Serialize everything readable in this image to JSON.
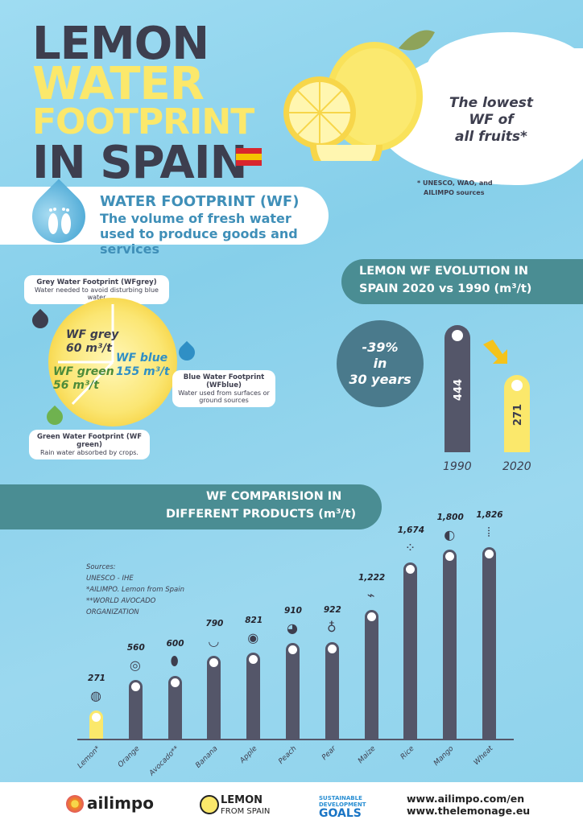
{
  "title": {
    "line1": "LEMON",
    "line2": "WATER",
    "line3": "FOOTPRINT",
    "line4": "IN SPAIN"
  },
  "colors": {
    "background": "#8fd3ec",
    "dark": "#3d3e4e",
    "yellow": "#fbe86b",
    "teal": "#4a8d93",
    "blue_text": "#3f8fb8",
    "bar": "#545669"
  },
  "callout": {
    "text_line1": "The lowest",
    "text_line2": "WF of",
    "text_line3": "all fruits*",
    "sources_line1": "* UNESCO, WAO, and",
    "sources_line2": "AILIMPO sources"
  },
  "definition": {
    "title": "WATER FOOTPRINT (WF)",
    "subtitle": "The volume of fresh water used to produce goods and services"
  },
  "lemon_breakdown": {
    "grey_label": "WF grey",
    "grey_value": "60 m³/t",
    "blue_label": "WF blue",
    "blue_value": "155 m³/t",
    "green_label": "WF green",
    "green_value": "56 m³/t",
    "grey_box_title": "Grey Water Footprint (WFgrey)",
    "grey_box_desc": "Water needed to avoid disturbing blue water",
    "blue_box_title": "Blue Water Footprint (WFblue)",
    "blue_box_desc": "Water used from surfaces or ground sources",
    "green_box_title": "Green Water Footprint (WF green)",
    "green_box_desc": "Rain water absorbed by crops."
  },
  "evolution": {
    "title_line1": "LEMON WF EVOLUTION IN",
    "title_line2": "SPAIN 2020 vs 1990 (m³/t)",
    "change_line1": "-39%",
    "change_line2": "in",
    "change_line3": "30 years",
    "chart_data": {
      "type": "bar",
      "categories": [
        "1990",
        "2020"
      ],
      "values": [
        444,
        271
      ],
      "title": "LEMON WF EVOLUTION IN SPAIN 2020 vs 1990 (m³/t)",
      "ylim": [
        0,
        500
      ]
    }
  },
  "comparison": {
    "title_line1": "WF COMPARISION IN",
    "title_line2": "DIFFERENT PRODUCTS (m³/t)",
    "sources": [
      "Sources:",
      "UNESCO - IHE",
      "*AILIMPO. Lemon from Spain",
      "**WORLD AVOCADO",
      "ORGANIZATION"
    ],
    "chart_data": {
      "type": "bar",
      "title": "WF COMPARISION IN DIFFERENT PRODUCTS (m³/t)",
      "categories": [
        "Lemon*",
        "Orange",
        "Avocado**",
        "Banana",
        "Apple",
        "Peach",
        "Pear",
        "Maize",
        "Rice",
        "Mango",
        "Wheat"
      ],
      "values": [
        271,
        560,
        600,
        790,
        821,
        910,
        922,
        1222,
        1674,
        1800,
        1826
      ],
      "value_labels": [
        "271",
        "560",
        "600",
        "790",
        "821",
        "910",
        "922",
        "1,222",
        "1,674",
        "1,800",
        "1,826"
      ],
      "icons": [
        "lemon-icon",
        "orange-icon",
        "avocado-icon",
        "banana-icon",
        "apple-icon",
        "peach-icon",
        "pear-icon",
        "maize-icon",
        "rice-icon",
        "mango-icon",
        "wheat-icon"
      ],
      "ylim": [
        0,
        1900
      ]
    }
  },
  "footer": {
    "brand1": "ailimpo",
    "brand2_line1": "LEMON",
    "brand2_line2": "FROM SPAIN",
    "sdg_line1": "SUSTAINABLE",
    "sdg_line2": "DEVELOPMENT",
    "sdg_line3": "GOALS",
    "url1": "www.ailimpo.com/en",
    "url2": "www.thelemonage.eu"
  }
}
